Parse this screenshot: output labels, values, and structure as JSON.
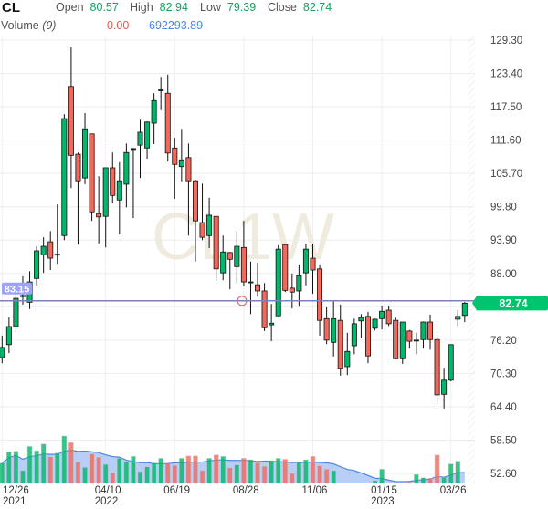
{
  "header": {
    "symbol": "CL",
    "open_label": "Open",
    "open": "80.57",
    "high_label": "High",
    "high": "82.94",
    "low_label": "Low",
    "low": "79.39",
    "close_label": "Close",
    "close": "82.74"
  },
  "volume_header": {
    "label": "Volume",
    "period": "(9)",
    "value_1": "0.00",
    "value_2": "692293.89"
  },
  "watermark": "CL1W",
  "colors": {
    "up": "#00b86b",
    "down": "#f2695c",
    "price_line": "#7b7fc4",
    "crosshair_label": "#9ea3f5",
    "last_label": "#00c46e",
    "volume_area": "#adc6f5",
    "volume_line": "#4a86e8"
  },
  "chart_data": {
    "type": "candlestick",
    "interval": "weekly",
    "y_axis": {
      "range": [
        52.6,
        129.3
      ],
      "ticks": [
        "129.30",
        "123.40",
        "117.50",
        "111.60",
        "105.70",
        "99.80",
        "93.90",
        "88.00",
        "76.20",
        "70.30",
        "64.40",
        "58.50",
        "52.60"
      ],
      "grid": true,
      "position": "right"
    },
    "x_axis": {
      "ticks": [
        {
          "index": 0,
          "label": "12/26",
          "sub": "2021"
        },
        {
          "index": 15,
          "label": "04/10",
          "sub": "2022"
        },
        {
          "index": 25,
          "label": "06/19",
          "sub": ""
        },
        {
          "index": 35,
          "label": "08/28",
          "sub": ""
        },
        {
          "index": 45,
          "label": "11/06",
          "sub": ""
        },
        {
          "index": 55,
          "label": "01/15",
          "sub": "2023"
        },
        {
          "index": 65,
          "label": "03/26",
          "sub": ""
        }
      ]
    },
    "candles": [
      [
        73.1,
        77.0,
        72.1,
        74.9
      ],
      [
        75.4,
        80.2,
        73.9,
        78.6
      ],
      [
        78.6,
        84.4,
        77.6,
        83.6
      ],
      [
        83.9,
        87.5,
        82.5,
        84.1
      ],
      [
        82.9,
        88.4,
        81.7,
        86.5
      ],
      [
        87.1,
        92.8,
        85.9,
        92.0
      ],
      [
        91.3,
        94.4,
        88.1,
        92.8
      ],
      [
        93.6,
        95.5,
        88.6,
        90.7
      ],
      [
        91.3,
        100.2,
        89.7,
        91.4
      ],
      [
        94.7,
        116.2,
        93.9,
        115.4
      ],
      [
        121.1,
        128.0,
        103.1,
        108.9
      ],
      [
        109.1,
        109.4,
        93.1,
        104.4
      ],
      [
        104.9,
        116.4,
        103.8,
        113.6
      ],
      [
        112.7,
        112.7,
        97.3,
        98.9
      ],
      [
        98.6,
        105.2,
        93.3,
        98.0
      ],
      [
        98.1,
        106.7,
        92.6,
        106.7
      ],
      [
        106.7,
        109.4,
        100.4,
        101.8
      ],
      [
        101.0,
        107.7,
        94.9,
        104.4
      ],
      [
        103.8,
        111.0,
        99.7,
        109.4
      ],
      [
        110.0,
        110.2,
        97.8,
        110.1
      ],
      [
        110.7,
        115.2,
        104.9,
        113.0
      ],
      [
        110.2,
        114.9,
        108.3,
        114.8
      ],
      [
        114.6,
        119.9,
        110.9,
        118.6
      ],
      [
        120.4,
        122.8,
        116.9,
        120.5
      ],
      [
        119.9,
        123.2,
        107.8,
        109.3
      ],
      [
        110.2,
        112.0,
        101.2,
        107.3
      ],
      [
        106.9,
        113.6,
        104.3,
        108.1
      ],
      [
        108.5,
        111.0,
        94.7,
        104.4
      ],
      [
        104.4,
        104.6,
        90.1,
        97.3
      ],
      [
        97.0,
        103.9,
        93.9,
        94.4
      ],
      [
        94.7,
        101.4,
        92.5,
        98.3
      ],
      [
        98.1,
        98.1,
        86.7,
        88.8
      ],
      [
        88.1,
        94.7,
        86.8,
        91.8
      ],
      [
        91.7,
        91.8,
        85.2,
        90.5
      ],
      [
        89.2,
        95.5,
        86.3,
        92.8
      ],
      [
        92.6,
        97.3,
        85.7,
        86.5
      ],
      [
        86.5,
        90.1,
        80.8,
        86.5
      ],
      [
        86.0,
        89.9,
        83.9,
        84.9
      ],
      [
        84.9,
        86.3,
        77.8,
        78.4
      ],
      [
        78.9,
        82.6,
        76.0,
        79.2
      ],
      [
        80.5,
        93.0,
        80.4,
        92.3
      ],
      [
        93.1,
        93.1,
        84.7,
        85.0
      ],
      [
        85.4,
        88.0,
        81.8,
        84.7
      ],
      [
        84.9,
        89.6,
        82.1,
        87.6
      ],
      [
        88.1,
        93.3,
        85.9,
        92.3
      ],
      [
        90.7,
        93.3,
        84.4,
        88.6
      ],
      [
        88.8,
        89.6,
        77.0,
        79.7
      ],
      [
        80.0,
        82.0,
        75.5,
        76.2
      ],
      [
        75.8,
        83.1,
        73.3,
        80.0
      ],
      [
        79.7,
        82.5,
        69.9,
        71.2
      ],
      [
        71.5,
        77.5,
        70.0,
        74.2
      ],
      [
        75.2,
        80.0,
        73.7,
        79.1
      ],
      [
        79.6,
        80.8,
        76.5,
        80.2
      ],
      [
        80.4,
        81.2,
        72.1,
        73.4
      ],
      [
        78.3,
        80.0,
        77.9,
        79.9
      ],
      [
        80.0,
        82.3,
        78.1,
        81.3
      ],
      [
        81.5,
        82.3,
        78.7,
        79.1
      ],
      [
        79.7,
        80.2,
        72.8,
        72.9
      ],
      [
        72.9,
        79.4,
        72.0,
        79.4
      ],
      [
        77.8,
        78.0,
        74.7,
        76.0
      ],
      [
        76.2,
        77.5,
        73.7,
        76.2
      ],
      [
        76.3,
        79.5,
        74.7,
        79.4
      ],
      [
        79.4,
        80.7,
        74.5,
        76.3
      ],
      [
        76.3,
        77.1,
        64.9,
        66.5
      ],
      [
        66.6,
        71.3,
        64.1,
        69.1
      ],
      [
        69.1,
        75.4,
        68.9,
        75.4
      ],
      [
        79.9,
        81.5,
        78.7,
        80.4
      ],
      [
        80.57,
        82.94,
        79.39,
        82.74
      ]
    ],
    "candle_fields": [
      "open",
      "high",
      "low",
      "close"
    ],
    "volume_relative": [
      0.43,
      0.66,
      0.68,
      0.27,
      0.78,
      0.69,
      0.83,
      0.56,
      0.64,
      1.0,
      0.86,
      0.45,
      0.34,
      0.62,
      0.55,
      0.4,
      0.23,
      0.53,
      0.45,
      0.57,
      0.25,
      0.35,
      0.43,
      0.53,
      0.43,
      0.38,
      0.53,
      0.58,
      0.58,
      0.27,
      0.53,
      0.6,
      0.57,
      0.33,
      0.39,
      0.53,
      0.5,
      0.44,
      0.36,
      0.48,
      0.53,
      0.51,
      0.21,
      0.45,
      0.5,
      0.57,
      0.37,
      0.3,
      0.27,
      0,
      0,
      0,
      0,
      0,
      0.06,
      0.3,
      0,
      0,
      0,
      0.03,
      0.19,
      0.12,
      0.11,
      0.6,
      0.13,
      0.41,
      0.47,
      0
    ],
    "volume_ma_period": 9,
    "price_line": {
      "value": "83.15"
    },
    "last_price": {
      "value": "82.74"
    }
  }
}
